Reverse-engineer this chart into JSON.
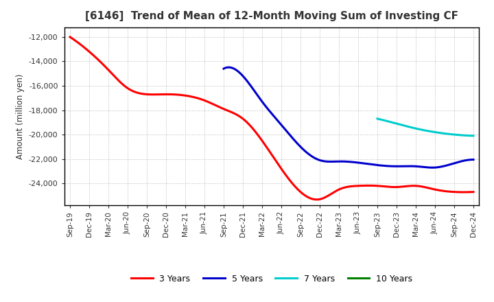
{
  "title": "[6146]  Trend of Mean of 12-Month Moving Sum of Investing CF",
  "ylabel": "Amount (million yen)",
  "background_color": "#ffffff",
  "grid_color": "#888888",
  "x_labels": [
    "Sep-19",
    "Dec-19",
    "Mar-20",
    "Jun-20",
    "Sep-20",
    "Dec-20",
    "Mar-21",
    "Jun-21",
    "Sep-21",
    "Dec-21",
    "Mar-22",
    "Jun-22",
    "Sep-22",
    "Dec-22",
    "Mar-23",
    "Jun-23",
    "Sep-23",
    "Dec-23",
    "Mar-24",
    "Jun-24",
    "Sep-24",
    "Dec-24"
  ],
  "series": {
    "3 Years": {
      "color": "#ff0000",
      "data_x": [
        0,
        1,
        2,
        3,
        4,
        5,
        6,
        7,
        8,
        9,
        10,
        11,
        12,
        13,
        14,
        15,
        16,
        17,
        18,
        19,
        20,
        21
      ],
      "data_y": [
        -12000,
        -13200,
        -14700,
        -16200,
        -16700,
        -16700,
        -16800,
        -17200,
        -17900,
        -18700,
        -20500,
        -22800,
        -24700,
        -25300,
        -24500,
        -24200,
        -24200,
        -24300,
        -24200,
        -24500,
        -24700,
        -24700
      ]
    },
    "5 Years": {
      "color": "#0000cc",
      "data_x": [
        8,
        9,
        10,
        11,
        12,
        13,
        14,
        15,
        16,
        17,
        18,
        19,
        20,
        21
      ],
      "data_y": [
        -14600,
        -15200,
        -17300,
        -19200,
        -21000,
        -22100,
        -22200,
        -22300,
        -22500,
        -22600,
        -22600,
        -22700,
        -22350,
        -22050
      ]
    },
    "7 Years": {
      "color": "#00cccc",
      "data_x": [
        16,
        17,
        18,
        19,
        20,
        21
      ],
      "data_y": [
        -18700,
        -19100,
        -19500,
        -19800,
        -20000,
        -20100
      ]
    },
    "10 Years": {
      "color": "#008000",
      "data_x": [],
      "data_y": []
    }
  },
  "ylim": [
    -25800,
    -11200
  ],
  "yticks": [
    -12000,
    -14000,
    -16000,
    -18000,
    -20000,
    -22000,
    -24000
  ],
  "legend_labels": [
    "3 Years",
    "5 Years",
    "7 Years",
    "10 Years"
  ],
  "legend_colors": [
    "#ff0000",
    "#0000cc",
    "#00cccc",
    "#008000"
  ],
  "title_color": "#333333",
  "title_fontsize": 11
}
